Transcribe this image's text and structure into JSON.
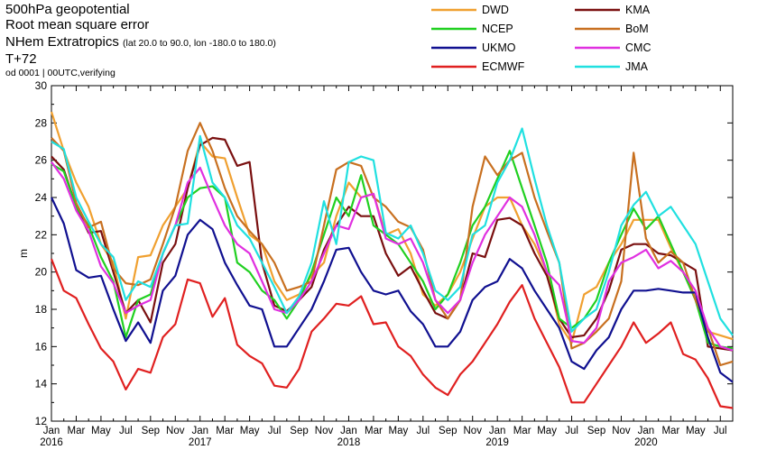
{
  "header": {
    "title": "500hPa geopotential",
    "metric": "Root mean square error",
    "region": "NHem Extratropics",
    "region_bounds": "(lat  20.0 to 90.0, lon  -180.0 to  180.0)",
    "lead_time": "T+72",
    "run_info": "od 0001 | 00UTC,verifying"
  },
  "chart_data": {
    "type": "line",
    "title": "500hPa geopotential",
    "ylabel": "m",
    "xlabel": "",
    "ylim": [
      12,
      30
    ],
    "yticks": [
      12,
      14,
      16,
      18,
      20,
      22,
      24,
      26,
      28,
      30
    ],
    "xlim": [
      0,
      55
    ],
    "xtick_labels": [
      "Jan",
      "Mar",
      "May",
      "Jul",
      "Sep",
      "Nov",
      "Jan",
      "Mar",
      "May",
      "Jul",
      "Sep",
      "Nov",
      "Jan",
      "Mar",
      "May",
      "Jul",
      "Sep",
      "Nov",
      "Jan",
      "Mar",
      "May",
      "Jul",
      "Sep",
      "Nov",
      "Jan",
      "Mar",
      "May",
      "Jul"
    ],
    "year_labels": [
      "2016",
      "2017",
      "2018",
      "2019",
      "2020"
    ],
    "grid": false,
    "legend_position": "top-right, two columns",
    "x_unit": "month index starting Jan 2016",
    "series": [
      {
        "name": "DWD",
        "color": "#f0a030",
        "values": [
          28.6,
          26.5,
          24.8,
          23.5,
          21.5,
          20.5,
          17.5,
          20.8,
          20.9,
          22.5,
          23.5,
          24.5,
          27.0,
          26.2,
          26.1,
          24.0,
          22.0,
          21.5,
          19.5,
          18.5,
          18.8,
          19.8,
          20.5,
          23.0,
          24.8,
          24.0,
          24.2,
          22.0,
          22.3,
          21.0,
          18.8,
          18.2,
          18.8,
          20.0,
          21.8,
          23.5,
          24.0,
          24.0,
          22.5,
          21.5,
          20.0,
          17.2,
          16.2,
          18.8,
          19.2,
          20.5,
          21.5,
          22.8,
          22.8,
          22.8,
          21.3,
          20.0,
          18.5,
          16.8,
          16.6,
          16.4
        ]
      },
      {
        "name": "KMA",
        "color": "#7a1010",
        "values": [
          26.2,
          25.5,
          23.5,
          22.1,
          22.2,
          20.0,
          17.8,
          18.5,
          17.3,
          20.5,
          21.5,
          24.5,
          26.8,
          27.2,
          27.1,
          25.7,
          25.9,
          20.5,
          18.2,
          17.9,
          18.5,
          19.2,
          21.2,
          22.5,
          23.5,
          23.0,
          23.0,
          21.0,
          19.8,
          20.3,
          19.0,
          17.8,
          17.5,
          18.5,
          21.0,
          20.8,
          22.8,
          22.9,
          22.5,
          21.0,
          19.8,
          17.5,
          16.5,
          16.6,
          17.5,
          19.0,
          21.2,
          21.5,
          21.5,
          21.0,
          20.9,
          20.5,
          20.1,
          16.0,
          15.9,
          15.8
        ]
      },
      {
        "name": "NCEP",
        "color": "#20d020",
        "values": [
          25.8,
          25.4,
          23.5,
          22.5,
          20.8,
          19.5,
          16.5,
          18.5,
          18.8,
          21.0,
          22.5,
          24.0,
          24.5,
          24.6,
          24.0,
          20.5,
          20.0,
          19.0,
          18.5,
          17.5,
          18.5,
          20.0,
          22.0,
          24.0,
          23.0,
          25.2,
          22.5,
          22.0,
          21.5,
          20.5,
          19.5,
          18.0,
          18.8,
          20.5,
          22.5,
          23.5,
          25.0,
          26.5,
          24.5,
          22.5,
          20.5,
          17.5,
          17.0,
          17.5,
          18.5,
          20.5,
          22.0,
          23.4,
          22.3,
          23.0,
          21.5,
          20.0,
          18.5,
          16.2,
          16.0,
          15.9
        ]
      },
      {
        "name": "BoM",
        "color": "#c87020",
        "values": [
          27.2,
          26.5,
          23.7,
          22.4,
          22.7,
          20.2,
          19.4,
          19.3,
          19.6,
          21.5,
          23.5,
          26.5,
          28.0,
          26.5,
          24.5,
          23.0,
          22.2,
          21.5,
          20.5,
          19.0,
          19.2,
          19.5,
          22.5,
          25.5,
          25.9,
          25.7,
          24.0,
          23.5,
          22.7,
          22.4,
          21.2,
          18.5,
          17.5,
          18.5,
          23.5,
          26.2,
          25.2,
          26.0,
          26.4,
          24.0,
          22.2,
          20.5,
          15.9,
          16.2,
          16.8,
          17.5,
          19.5,
          26.4,
          21.8,
          20.5,
          21.1,
          20.5,
          18.5,
          17.0,
          15.0,
          15.2
        ]
      },
      {
        "name": "UKMO",
        "color": "#101090",
        "values": [
          24.0,
          22.6,
          20.1,
          19.7,
          19.8,
          18.0,
          16.3,
          17.3,
          16.2,
          19.0,
          19.8,
          22.0,
          22.8,
          22.3,
          20.5,
          19.3,
          18.2,
          18.0,
          16.0,
          16.0,
          17.0,
          18.0,
          19.5,
          21.2,
          21.3,
          20.0,
          19.0,
          18.8,
          19.0,
          17.9,
          17.2,
          16.0,
          16.0,
          16.8,
          18.5,
          19.2,
          19.5,
          20.7,
          20.2,
          19.0,
          18.0,
          17.0,
          15.2,
          14.8,
          15.8,
          16.5,
          18.0,
          19.0,
          19.0,
          19.1,
          19.0,
          18.9,
          18.9,
          16.5,
          14.6,
          14.1
        ]
      },
      {
        "name": "CMC",
        "color": "#e030e0",
        "values": [
          25.9,
          25.0,
          23.3,
          22.2,
          20.3,
          19.4,
          17.8,
          18.2,
          18.5,
          21.0,
          22.5,
          24.8,
          25.6,
          24.0,
          22.5,
          21.5,
          21.0,
          19.5,
          18.0,
          17.8,
          18.5,
          19.5,
          21.0,
          22.5,
          22.3,
          24.0,
          24.2,
          21.8,
          21.5,
          21.8,
          20.5,
          18.5,
          17.8,
          18.5,
          20.5,
          22.0,
          23.0,
          24.0,
          23.5,
          22.0,
          20.0,
          19.3,
          16.3,
          16.2,
          17.0,
          19.5,
          20.5,
          20.8,
          21.2,
          20.2,
          20.6,
          20.0,
          19.0,
          17.0,
          16.0,
          15.8
        ]
      },
      {
        "name": "ECMWF",
        "color": "#e02020",
        "values": [
          20.7,
          19.0,
          18.6,
          17.2,
          15.9,
          15.2,
          13.7,
          14.8,
          14.6,
          16.5,
          17.2,
          19.6,
          19.4,
          17.6,
          18.6,
          16.1,
          15.5,
          15.1,
          13.9,
          13.8,
          14.8,
          16.8,
          17.5,
          18.3,
          18.2,
          18.7,
          17.2,
          17.3,
          16.0,
          15.5,
          14.5,
          13.8,
          13.4,
          14.5,
          15.2,
          16.2,
          17.2,
          18.4,
          19.3,
          17.5,
          16.2,
          14.9,
          13.0,
          13.0,
          14.0,
          15.0,
          16.0,
          17.3,
          16.2,
          16.7,
          17.3,
          15.6,
          15.3,
          14.3,
          12.8,
          12.7
        ]
      },
      {
        "name": "JMA",
        "color": "#20e0e0",
        "values": [
          27.0,
          26.6,
          24.0,
          22.7,
          21.5,
          20.8,
          18.5,
          19.5,
          19.2,
          21.0,
          22.5,
          22.6,
          27.3,
          24.8,
          24.0,
          22.5,
          21.8,
          20.5,
          19.2,
          17.8,
          18.7,
          20.5,
          23.8,
          21.5,
          25.9,
          26.2,
          26.0,
          22.1,
          21.8,
          22.5,
          21.0,
          19.0,
          18.5,
          19.2,
          22.0,
          22.5,
          24.8,
          26.0,
          27.7,
          25.0,
          22.5,
          20.5,
          16.8,
          17.5,
          18.0,
          20.0,
          22.5,
          23.6,
          24.3,
          23.0,
          23.5,
          22.5,
          21.5,
          19.5,
          17.5,
          16.6
        ]
      }
    ]
  },
  "legend": {
    "left": [
      "DWD",
      "NCEP",
      "UKMO",
      "ECMWF"
    ],
    "right": [
      "KMA",
      "BoM",
      "CMC",
      "JMA"
    ]
  }
}
